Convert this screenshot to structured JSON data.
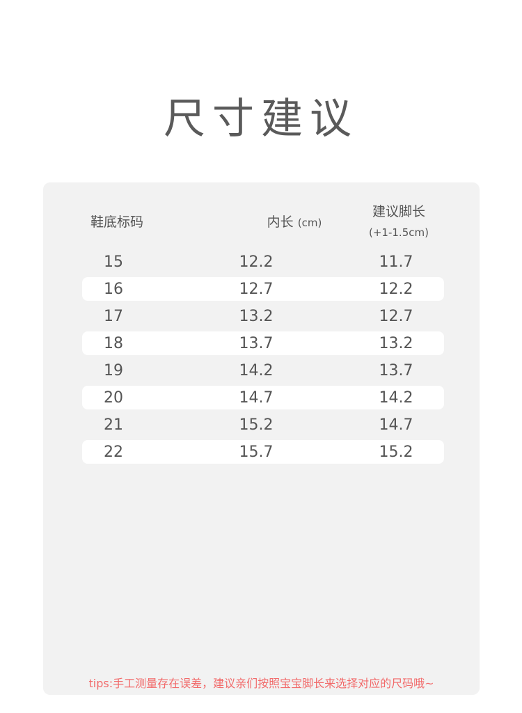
{
  "title": "尺寸建议",
  "table": {
    "headers": [
      "鞋底标码",
      "内长",
      "(cm)",
      "建议脚长",
      "(+1-1.5cm)"
    ],
    "rows": [
      [
        "15",
        "12.2",
        "11.7"
      ],
      [
        "16",
        "12.7",
        "12.2"
      ],
      [
        "17",
        "13.2",
        "12.7"
      ],
      [
        "18",
        "13.7",
        "13.2"
      ],
      [
        "19",
        "14.2",
        "13.7"
      ],
      [
        "20",
        "14.7",
        "14.2"
      ],
      [
        "21",
        "15.2",
        "14.7"
      ],
      [
        "22",
        "15.7",
        "15.2"
      ]
    ]
  },
  "tips": "tips:手工测量存在误差，建议亲们按照宝宝脚长来选择对应的尺码哦~",
  "colors": {
    "panel": "#f2f2f2",
    "tips": "#f26a6a",
    "text": "#555555"
  }
}
